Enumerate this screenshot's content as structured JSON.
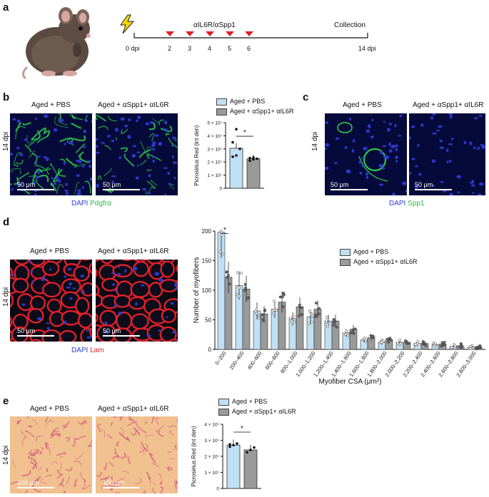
{
  "panel_a": {
    "label": "a",
    "treatment": "αIL6R/αSpp1",
    "collection": "Collection",
    "start_tick": "0 dpi",
    "end_tick": "14 dpi",
    "injection_days": [
      "2",
      "3",
      "4",
      "5",
      "6"
    ]
  },
  "panel_b": {
    "label": "b",
    "title_left": "Aged + PBS",
    "title_right": "Aged + αSpp1+ αIL6R",
    "row_label": "14 dpi",
    "scale_left": "50 μm",
    "scale_right": "50 μm",
    "stain_dapi": "DAPI",
    "stain_marker": "Pdgfrα"
  },
  "panel_c": {
    "label": "c",
    "title_left": "Aged + PBS",
    "title_right": "Aged + αSpp1+ αIL6R",
    "row_label": "14 dpi",
    "scale_left": "50 μm",
    "scale_right": "50 μm",
    "stain_dapi": "DAPI",
    "stain_marker": "Spp1"
  },
  "panel_d": {
    "label": "d",
    "title_left": "Aged + PBS",
    "title_right": "Aged + αSpp1+ αIL6R",
    "row_label": "14 dpi",
    "scale_left": "50 μm",
    "scale_right": "50 μm",
    "stain_dapi": "DAPI",
    "stain_marker": "Lam"
  },
  "panel_e": {
    "label": "e",
    "title_left": "Aged + PBS",
    "title_right": "Aged + αSpp1+ αIL6R",
    "row_label": "14 dpi",
    "scale_left": "100 μm",
    "scale_right": "100 μm"
  },
  "colors": {
    "pbs": "#bfe0f5",
    "treated": "#9a9a9a",
    "dapi": "#2f3cd8",
    "pdgfra": "#2bd64a",
    "lam": "#e0202a",
    "picro_bg": "#f1c08f",
    "picro_line": "#d04c7c"
  },
  "chart_data": [
    {
      "type": "bar",
      "panel": "b",
      "ylabel": "Picrosirius Red (int den)",
      "ytick_labels": [
        "0",
        "1 × 10⁷",
        "2 × 10⁷",
        "3 × 10⁷",
        "4 × 10⁷",
        "5 × 10⁷"
      ],
      "ylim": [
        0,
        50000000
      ],
      "series": [
        {
          "name": "Aged + PBS",
          "value": 30500000,
          "points": [
            24000000,
            25000000,
            30000000,
            35000000,
            45000000
          ]
        },
        {
          "name": "Aged + αSpp1+ αIL6R",
          "value": 22500000,
          "points": [
            21000000,
            22000000,
            22500000,
            23000000,
            23500000
          ]
        }
      ],
      "significance": "*"
    },
    {
      "type": "bar",
      "panel": "d",
      "xlabel": "Myofiber CSA (μm²)",
      "ylabel": "Number of myofibers",
      "ylim": [
        0,
        200
      ],
      "yticks": [
        "0",
        "50",
        "100",
        "150",
        "200"
      ],
      "categories": [
        "0–200",
        "200–400",
        "400–600",
        "600–800",
        "800–1,000",
        "1,000–1,200",
        "1,200–1,400",
        "1,400–1,600",
        "1,600–1,800",
        "1,800–2,000",
        "2,000–2,200",
        "2,200–2,400",
        "2,400–2,600",
        "2,600–2,800",
        "2,800–3,000"
      ],
      "series": [
        {
          "name": "Aged + PBS",
          "values": [
            198,
            108,
            65,
            68,
            52,
            55,
            48,
            28,
            16,
            12,
            12,
            10,
            8,
            5,
            4
          ]
        },
        {
          "name": "Aged + αSpp1+ αIL6R",
          "values": [
            122,
            102,
            60,
            80,
            72,
            68,
            48,
            34,
            20,
            16,
            12,
            10,
            9,
            6,
            4
          ]
        }
      ],
      "significance": "*"
    },
    {
      "type": "bar",
      "panel": "e",
      "ylabel": "Picrosirius Red (int den)",
      "ytick_labels": [
        "0",
        "1 × 10⁷",
        "2 × 10⁷",
        "3 × 10⁷",
        "4 × 10⁷"
      ],
      "ylim": [
        0,
        40000000
      ],
      "series": [
        {
          "name": "Aged + PBS",
          "value": 27000000,
          "points": [
            26000000,
            27000000,
            28000000,
            27500000
          ]
        },
        {
          "name": "Aged + αSpp1+ αIL6R",
          "value": 24000000,
          "points": [
            22500000,
            24000000,
            25500000
          ]
        }
      ],
      "significance": "*"
    }
  ]
}
